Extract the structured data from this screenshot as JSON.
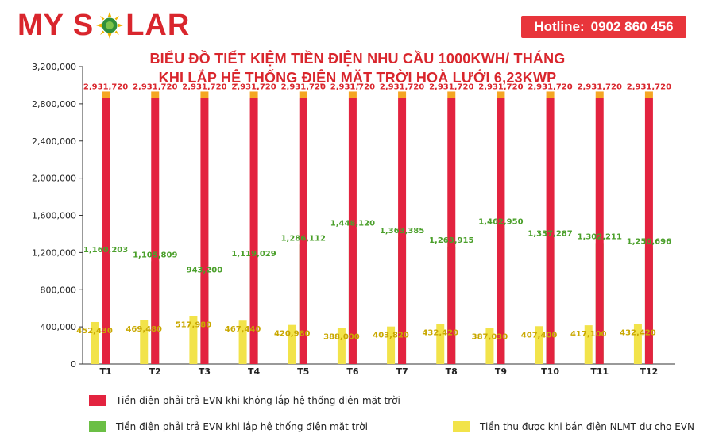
{
  "brand": {
    "name_left": "MY S",
    "name_right": "LAR"
  },
  "hotline": {
    "label": "Hotline:",
    "number": "0902 860 456"
  },
  "colors": {
    "brand_red": "#d9262d",
    "hotline_bg": "#e8353b"
  },
  "chart_data": {
    "type": "bar",
    "title": "BIỂU ĐỒ TIẾT KIỆM TIỀN ĐIỆN NHU CẦU 1000KWH/ THÁNG",
    "subtitle": "KHI LẮP HỆ THỐNG ĐIỆN MẶT TRỜI HOÀ LƯỚI 6,23KWP",
    "xlabel": "",
    "ylabel": "",
    "ylim": [
      0,
      3200000
    ],
    "yticks": [
      0,
      400000,
      800000,
      1200000,
      1600000,
      2000000,
      2400000,
      2800000,
      3200000
    ],
    "ytick_labels": [
      "0",
      "400,000",
      "800,000",
      "1,200,000",
      "1,600,000",
      "2,000,000",
      "2,400,000",
      "2,800,000",
      "3,200,000"
    ],
    "grid": false,
    "legend_position": "bottom",
    "categories": [
      "T1",
      "T2",
      "T3",
      "T4",
      "T5",
      "T6",
      "T7",
      "T8",
      "T9",
      "T10",
      "T11",
      "T12"
    ],
    "series": [
      {
        "name": "Tiền thu được khi bán điện NLMT dư cho EVN",
        "color": "#f2e34a",
        "label_color": "#c9a800",
        "values": [
          452430,
          469480,
          517980,
          467440,
          420980,
          388000,
          403820,
          432420,
          387030,
          407400,
          417100,
          432420
        ],
        "labels": [
          "452,430",
          "469,480",
          "517,980",
          "467,440",
          "420,980",
          "388,000",
          "403,820",
          "432,420",
          "387,030",
          "407,400",
          "417,100",
          "432,420"
        ]
      },
      {
        "name": "Tiền điện phải trả EVN khi  lắp hệ thống điện mặt trời",
        "color": "#6bbf45",
        "label_color": "#4a9f2a",
        "values": [
          1160203,
          1105809,
          943200,
          1119029,
          1286112,
          1448120,
          1363385,
          1263915,
          1462950,
          1337287,
          1302211,
          1250696
        ],
        "labels": [
          "1,160,203",
          "1,105,809",
          "943,200",
          "1,119,029",
          "1,286,112",
          "1,448,120",
          "1,363,385",
          "1,263,915",
          "1,462,950",
          "1,337,287",
          "1,302,211",
          "1,250,696"
        ]
      },
      {
        "name": "Tiền điện phải trả EVN khi không lắp hệ thống điện mặt trời",
        "color": "#e3233f",
        "top_color": "#f5a623",
        "label_color": "#d9262d",
        "values": [
          2931720,
          2931720,
          2931720,
          2931720,
          2931720,
          2931720,
          2931720,
          2931720,
          2931720,
          2931720,
          2931720,
          2931720
        ],
        "labels": [
          "2,931,720",
          "2,931,720",
          "2,931,720",
          "2,931,720",
          "2,931,720",
          "2,931,720",
          "2,931,720",
          "2,931,720",
          "2,931,720",
          "2,931,720",
          "2,931,720",
          "2,931,720"
        ]
      }
    ],
    "legend_order": [
      2,
      1,
      0
    ]
  }
}
